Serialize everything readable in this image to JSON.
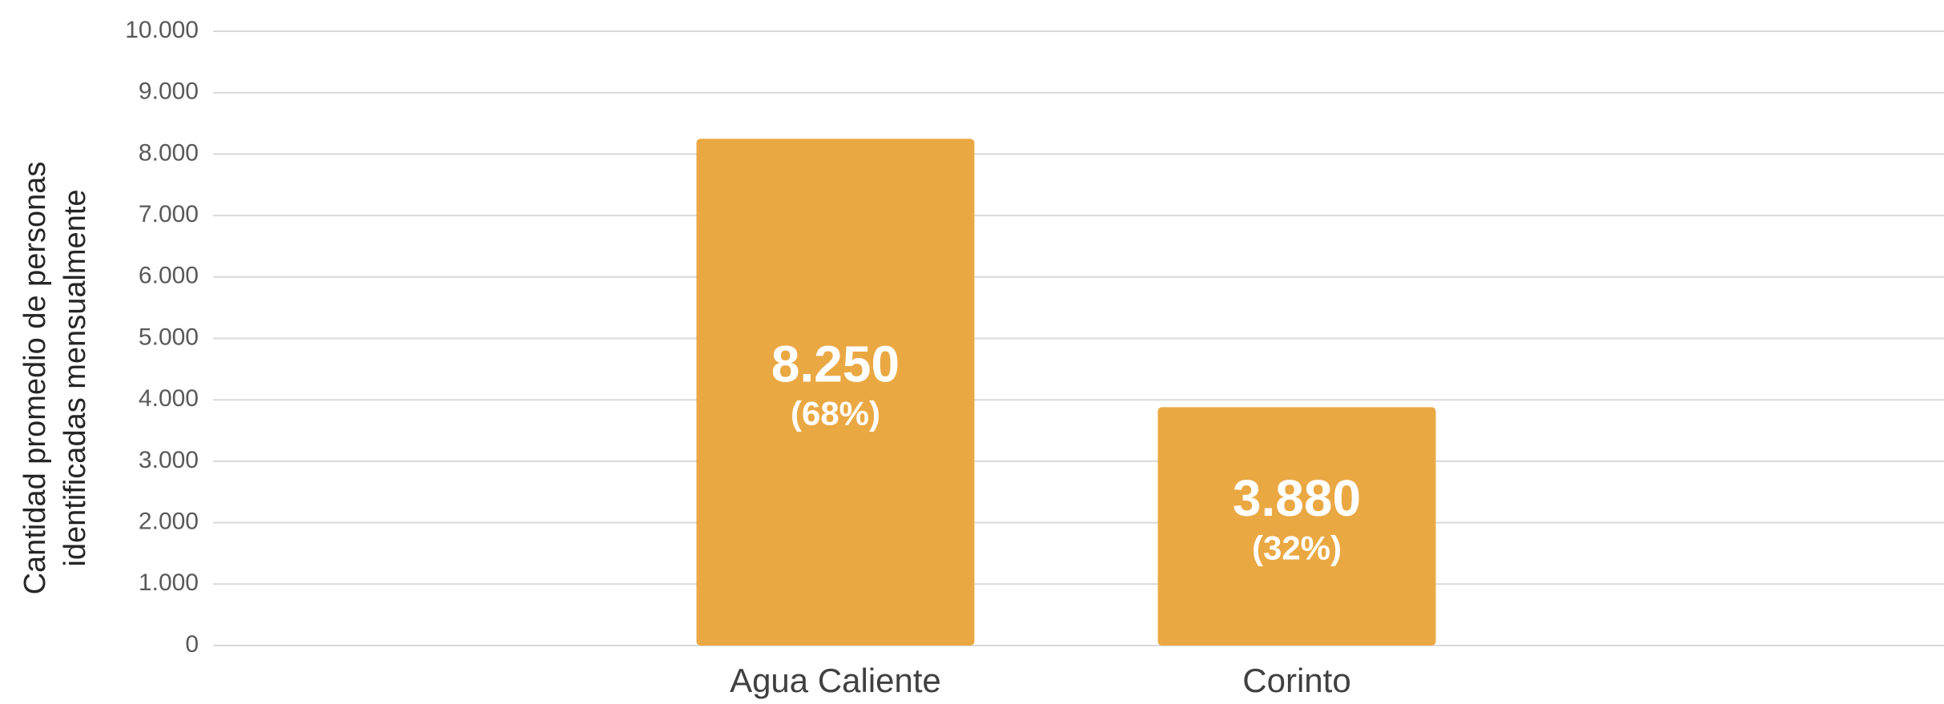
{
  "chart_data": {
    "type": "bar",
    "y_label": [
      "Cantidad promedio de personas",
      "identificadas mensualmente"
    ],
    "categories": [
      "Agua Caliente",
      "Corinto"
    ],
    "values": [
      8250,
      3880
    ],
    "value_labels": [
      "8.250",
      "3.880"
    ],
    "share_labels": [
      "(68%)",
      "(32%)"
    ],
    "color": "#eaa843",
    "ylim": [
      0,
      10000
    ],
    "yticks": [
      0,
      {
        "value": 1000,
        "label": "1.000"
      },
      {
        "value": 2000,
        "label": "2.000"
      },
      {
        "value": 3000,
        "label": "3.000"
      },
      {
        "value": 4000,
        "label": "4.000"
      },
      {
        "value": 5000,
        "label": "5.000"
      },
      {
        "value": 6000,
        "label": "6.000"
      },
      {
        "value": 7000,
        "label": "7.000"
      },
      {
        "value": 8000,
        "label": "8.000"
      },
      {
        "value": 9000,
        "label": "9.000"
      },
      {
        "value": 10000,
        "label": "10.000"
      }
    ],
    "grid": true
  }
}
